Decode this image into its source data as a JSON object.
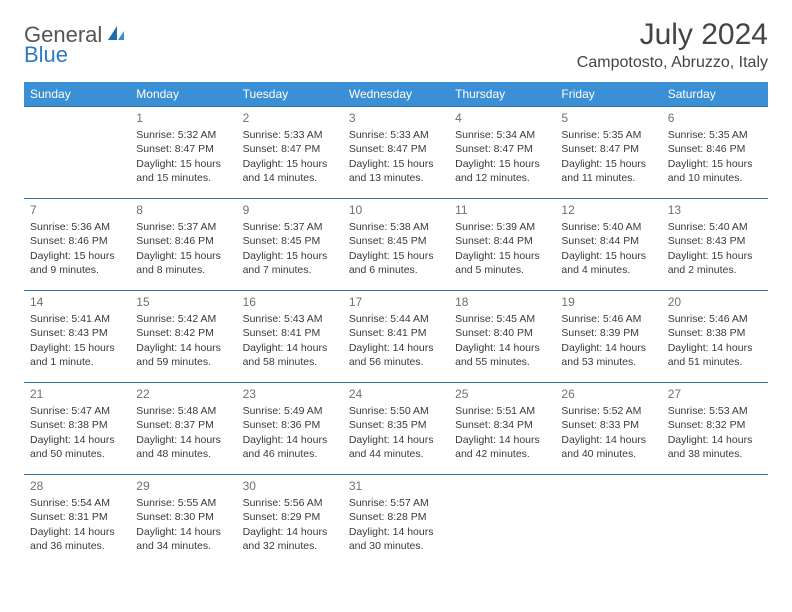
{
  "brand": {
    "part1": "General",
    "part2": "Blue"
  },
  "title": "July 2024",
  "location": "Campotosto, Abruzzo, Italy",
  "colors": {
    "header_bg": "#3b8fd4",
    "header_text": "#ffffff",
    "cell_border": "#2f6fa8",
    "daynum": "#707070",
    "body_text": "#3a3a3a",
    "brand_gray": "#555555",
    "brand_blue": "#2f7bbf"
  },
  "weekdays": [
    "Sunday",
    "Monday",
    "Tuesday",
    "Wednesday",
    "Thursday",
    "Friday",
    "Saturday"
  ],
  "weeks": [
    [
      null,
      {
        "n": "1",
        "sr": "Sunrise: 5:32 AM",
        "ss": "Sunset: 8:47 PM",
        "dl": "Daylight: 15 hours and 15 minutes."
      },
      {
        "n": "2",
        "sr": "Sunrise: 5:33 AM",
        "ss": "Sunset: 8:47 PM",
        "dl": "Daylight: 15 hours and 14 minutes."
      },
      {
        "n": "3",
        "sr": "Sunrise: 5:33 AM",
        "ss": "Sunset: 8:47 PM",
        "dl": "Daylight: 15 hours and 13 minutes."
      },
      {
        "n": "4",
        "sr": "Sunrise: 5:34 AM",
        "ss": "Sunset: 8:47 PM",
        "dl": "Daylight: 15 hours and 12 minutes."
      },
      {
        "n": "5",
        "sr": "Sunrise: 5:35 AM",
        "ss": "Sunset: 8:47 PM",
        "dl": "Daylight: 15 hours and 11 minutes."
      },
      {
        "n": "6",
        "sr": "Sunrise: 5:35 AM",
        "ss": "Sunset: 8:46 PM",
        "dl": "Daylight: 15 hours and 10 minutes."
      }
    ],
    [
      {
        "n": "7",
        "sr": "Sunrise: 5:36 AM",
        "ss": "Sunset: 8:46 PM",
        "dl": "Daylight: 15 hours and 9 minutes."
      },
      {
        "n": "8",
        "sr": "Sunrise: 5:37 AM",
        "ss": "Sunset: 8:46 PM",
        "dl": "Daylight: 15 hours and 8 minutes."
      },
      {
        "n": "9",
        "sr": "Sunrise: 5:37 AM",
        "ss": "Sunset: 8:45 PM",
        "dl": "Daylight: 15 hours and 7 minutes."
      },
      {
        "n": "10",
        "sr": "Sunrise: 5:38 AM",
        "ss": "Sunset: 8:45 PM",
        "dl": "Daylight: 15 hours and 6 minutes."
      },
      {
        "n": "11",
        "sr": "Sunrise: 5:39 AM",
        "ss": "Sunset: 8:44 PM",
        "dl": "Daylight: 15 hours and 5 minutes."
      },
      {
        "n": "12",
        "sr": "Sunrise: 5:40 AM",
        "ss": "Sunset: 8:44 PM",
        "dl": "Daylight: 15 hours and 4 minutes."
      },
      {
        "n": "13",
        "sr": "Sunrise: 5:40 AM",
        "ss": "Sunset: 8:43 PM",
        "dl": "Daylight: 15 hours and 2 minutes."
      }
    ],
    [
      {
        "n": "14",
        "sr": "Sunrise: 5:41 AM",
        "ss": "Sunset: 8:43 PM",
        "dl": "Daylight: 15 hours and 1 minute."
      },
      {
        "n": "15",
        "sr": "Sunrise: 5:42 AM",
        "ss": "Sunset: 8:42 PM",
        "dl": "Daylight: 14 hours and 59 minutes."
      },
      {
        "n": "16",
        "sr": "Sunrise: 5:43 AM",
        "ss": "Sunset: 8:41 PM",
        "dl": "Daylight: 14 hours and 58 minutes."
      },
      {
        "n": "17",
        "sr": "Sunrise: 5:44 AM",
        "ss": "Sunset: 8:41 PM",
        "dl": "Daylight: 14 hours and 56 minutes."
      },
      {
        "n": "18",
        "sr": "Sunrise: 5:45 AM",
        "ss": "Sunset: 8:40 PM",
        "dl": "Daylight: 14 hours and 55 minutes."
      },
      {
        "n": "19",
        "sr": "Sunrise: 5:46 AM",
        "ss": "Sunset: 8:39 PM",
        "dl": "Daylight: 14 hours and 53 minutes."
      },
      {
        "n": "20",
        "sr": "Sunrise: 5:46 AM",
        "ss": "Sunset: 8:38 PM",
        "dl": "Daylight: 14 hours and 51 minutes."
      }
    ],
    [
      {
        "n": "21",
        "sr": "Sunrise: 5:47 AM",
        "ss": "Sunset: 8:38 PM",
        "dl": "Daylight: 14 hours and 50 minutes."
      },
      {
        "n": "22",
        "sr": "Sunrise: 5:48 AM",
        "ss": "Sunset: 8:37 PM",
        "dl": "Daylight: 14 hours and 48 minutes."
      },
      {
        "n": "23",
        "sr": "Sunrise: 5:49 AM",
        "ss": "Sunset: 8:36 PM",
        "dl": "Daylight: 14 hours and 46 minutes."
      },
      {
        "n": "24",
        "sr": "Sunrise: 5:50 AM",
        "ss": "Sunset: 8:35 PM",
        "dl": "Daylight: 14 hours and 44 minutes."
      },
      {
        "n": "25",
        "sr": "Sunrise: 5:51 AM",
        "ss": "Sunset: 8:34 PM",
        "dl": "Daylight: 14 hours and 42 minutes."
      },
      {
        "n": "26",
        "sr": "Sunrise: 5:52 AM",
        "ss": "Sunset: 8:33 PM",
        "dl": "Daylight: 14 hours and 40 minutes."
      },
      {
        "n": "27",
        "sr": "Sunrise: 5:53 AM",
        "ss": "Sunset: 8:32 PM",
        "dl": "Daylight: 14 hours and 38 minutes."
      }
    ],
    [
      {
        "n": "28",
        "sr": "Sunrise: 5:54 AM",
        "ss": "Sunset: 8:31 PM",
        "dl": "Daylight: 14 hours and 36 minutes."
      },
      {
        "n": "29",
        "sr": "Sunrise: 5:55 AM",
        "ss": "Sunset: 8:30 PM",
        "dl": "Daylight: 14 hours and 34 minutes."
      },
      {
        "n": "30",
        "sr": "Sunrise: 5:56 AM",
        "ss": "Sunset: 8:29 PM",
        "dl": "Daylight: 14 hours and 32 minutes."
      },
      {
        "n": "31",
        "sr": "Sunrise: 5:57 AM",
        "ss": "Sunset: 8:28 PM",
        "dl": "Daylight: 14 hours and 30 minutes."
      },
      null,
      null,
      null
    ]
  ]
}
